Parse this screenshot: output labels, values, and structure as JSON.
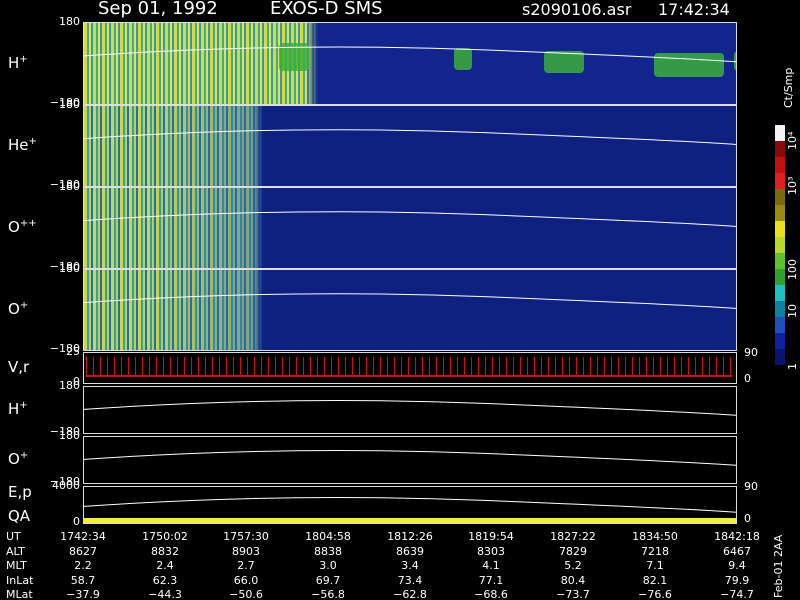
{
  "header": {
    "date": "Sep 01, 1992",
    "instrument": "EXOS-D SMS",
    "file": "s2090106.asr",
    "time": "17:42:34"
  },
  "panels": [
    {
      "label": "H",
      "sup": "+",
      "top_tick": "180",
      "bottom_tick": "−180"
    },
    {
      "label": "He",
      "sup": "+",
      "top_tick": "180",
      "bottom_tick": "−180"
    },
    {
      "label": "O",
      "sup": "++",
      "top_tick": "180",
      "bottom_tick": "−180"
    },
    {
      "label": "O",
      "sup": "+",
      "top_tick": "180",
      "bottom_tick": "−180"
    },
    {
      "label": "V,r",
      "top_tick": "25",
      "bottom_tick": "0",
      "right_top": "90",
      "right_bottom": "0"
    },
    {
      "label": "H",
      "sup": "+",
      "top_tick": "180",
      "bottom_tick": "−180"
    },
    {
      "label": "O",
      "sup": "+",
      "top_tick": "180",
      "bottom_tick": "−180"
    },
    {
      "label": "E,p",
      "label2": "QA",
      "top_tick": "4000",
      "bottom_tick": "0",
      "right_top": "90",
      "right_bottom": "0"
    }
  ],
  "colorbar": {
    "title": "Ct/Smp",
    "labels": [
      "10⁴",
      "10³",
      "100",
      "10",
      "1"
    ]
  },
  "table": {
    "rows": [
      {
        "label": "UT",
        "values": [
          "1742:34",
          "1750:02",
          "1757:30",
          "1804:58",
          "1812:26",
          "1819:54",
          "1827:22",
          "1834:50",
          "1842:18"
        ]
      },
      {
        "label": "ALT",
        "values": [
          "8627",
          "8832",
          "8903",
          "8838",
          "8639",
          "8303",
          "7829",
          "7218",
          "6467"
        ]
      },
      {
        "label": "MLT",
        "values": [
          "2.2",
          "2.4",
          "2.7",
          "3.0",
          "3.4",
          "4.1",
          "5.2",
          "7.1",
          "9.4"
        ]
      },
      {
        "label": "InLat",
        "values": [
          "58.7",
          "62.3",
          "66.0",
          "69.7",
          "73.4",
          "77.1",
          "80.4",
          "82.1",
          "79.9"
        ]
      },
      {
        "label": "MLat",
        "values": [
          "−37.9",
          "−44.3",
          "−50.6",
          "−56.8",
          "−62.8",
          "−68.6",
          "−73.7",
          "−76.6",
          "−74.7"
        ]
      }
    ]
  },
  "footer": "Feb-01 2AA"
}
